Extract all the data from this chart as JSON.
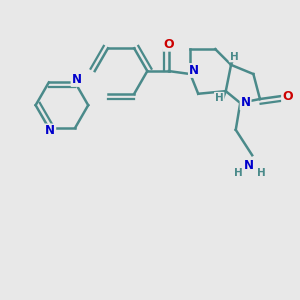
{
  "bg_color": "#e8e8e8",
  "bond_color": "#4a8a8a",
  "bond_width": 1.8,
  "N_color": "#0000cc",
  "O_color": "#cc0000",
  "text_color": "#4a8a8a",
  "figsize": [
    3.0,
    3.0
  ],
  "dpi": 100,
  "xlim": [
    0,
    10
  ],
  "ylim": [
    0,
    10
  ]
}
